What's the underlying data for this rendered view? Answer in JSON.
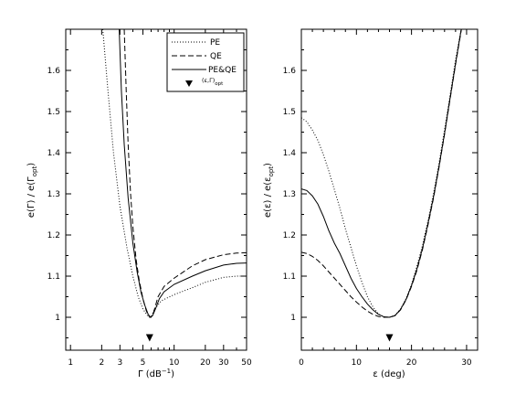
{
  "chart_data": [
    {
      "type": "line",
      "xscale": "log",
      "xlabel": "Γ (dB",
      "xlabel_sup": "−1",
      "xlabel_tail": ")",
      "ylabel": "e(Γ) / e(Γ",
      "ylabel_sub": "opt",
      "ylabel_tail": ")",
      "xlim": [
        0.9,
        50
      ],
      "ylim": [
        0.92,
        1.7
      ],
      "xticks": [
        1,
        2,
        3,
        5,
        10,
        20,
        30,
        50
      ],
      "xtick_labels": [
        "1",
        "2",
        "3",
        "5",
        "10",
        "20",
        "30",
        "50"
      ],
      "yticks": [
        1.0,
        1.1,
        1.2,
        1.3,
        1.4,
        1.5,
        1.6
      ],
      "ytick_labels": [
        "1",
        "1.1",
        "1.2",
        "1.3",
        "1.4",
        "1.5",
        "1.6"
      ],
      "legend": {
        "position": "top-right",
        "entries": [
          {
            "label": "PE",
            "dash": "dotted"
          },
          {
            "label": "QE",
            "dash": "dashed"
          },
          {
            "label": "PE&QE",
            "dash": "solid"
          },
          {
            "label": "(ε,Γ)",
            "sub": "opt",
            "marker": "triangle-down"
          }
        ]
      },
      "series": [
        {
          "name": "PE",
          "dash": "dotted",
          "x": [
            2.05,
            2.3,
            2.6,
            3.0,
            3.5,
            4.0,
            4.5,
            5.0,
            5.5,
            5.8,
            6.0,
            6.5,
            7.5,
            10,
            15,
            20,
            30,
            40,
            50
          ],
          "y": [
            1.7,
            1.55,
            1.4,
            1.27,
            1.17,
            1.1,
            1.05,
            1.02,
            1.005,
            1.0,
            1.002,
            1.02,
            1.04,
            1.055,
            1.072,
            1.085,
            1.097,
            1.1,
            1.1
          ]
        },
        {
          "name": "QE",
          "dash": "dashed",
          "x": [
            3.3,
            3.45,
            3.6,
            3.8,
            4.0,
            4.3,
            4.6,
            5.0,
            5.4,
            5.7,
            6.0,
            6.3,
            7.0,
            8.0,
            10,
            15,
            20,
            30,
            40,
            50
          ],
          "y": [
            1.7,
            1.55,
            1.42,
            1.3,
            1.22,
            1.14,
            1.09,
            1.045,
            1.015,
            1.003,
            1.0,
            1.01,
            1.05,
            1.075,
            1.095,
            1.125,
            1.14,
            1.152,
            1.156,
            1.157
          ]
        },
        {
          "name": "PE&QE",
          "dash": "solid",
          "x": [
            2.95,
            3.1,
            3.3,
            3.6,
            4.0,
            4.4,
            4.8,
            5.2,
            5.6,
            5.9,
            6.2,
            6.6,
            7.2,
            8.0,
            10,
            15,
            20,
            30,
            40,
            50
          ],
          "y": [
            1.7,
            1.55,
            1.42,
            1.29,
            1.18,
            1.11,
            1.06,
            1.03,
            1.008,
            1.0,
            1.004,
            1.02,
            1.045,
            1.062,
            1.08,
            1.1,
            1.113,
            1.127,
            1.131,
            1.132
          ]
        }
      ],
      "markers": [
        {
          "x": 5.8,
          "y": 0.95,
          "shape": "triangle-down"
        }
      ]
    },
    {
      "type": "line",
      "xscale": "linear",
      "xlabel": "ε (deg)",
      "ylabel": "e(ε) / e(ε",
      "ylabel_sub": "opt",
      "ylabel_tail": ")",
      "xlim": [
        0,
        32
      ],
      "ylim": [
        0.92,
        1.7
      ],
      "xticks": [
        0,
        10,
        20,
        30
      ],
      "xtick_labels": [
        "0",
        "10",
        "20",
        "30"
      ],
      "yticks": [
        1.0,
        1.1,
        1.2,
        1.3,
        1.4,
        1.5,
        1.6
      ],
      "ytick_labels": [
        "1",
        "1.1",
        "1.2",
        "1.3",
        "1.4",
        "1.5",
        "1.6"
      ],
      "series": [
        {
          "name": "PE",
          "dash": "dotted",
          "x": [
            0,
            1,
            2,
            3,
            4,
            5,
            6,
            7,
            8,
            9,
            10,
            11,
            12,
            13,
            14,
            15,
            16,
            17,
            18,
            19,
            20,
            21,
            22,
            23,
            24,
            25,
            26,
            27,
            28,
            29,
            30
          ],
          "y": [
            1.485,
            1.475,
            1.455,
            1.43,
            1.395,
            1.355,
            1.31,
            1.265,
            1.215,
            1.17,
            1.125,
            1.085,
            1.05,
            1.025,
            1.008,
            1.001,
            1.0,
            1.005,
            1.02,
            1.045,
            1.08,
            1.125,
            1.175,
            1.235,
            1.3,
            1.375,
            1.455,
            1.54,
            1.625,
            1.7,
            1.79
          ]
        },
        {
          "name": "QE",
          "dash": "dashed",
          "x": [
            0,
            1,
            2,
            3,
            4,
            5,
            6,
            7,
            8,
            9,
            10,
            11,
            12,
            13,
            14,
            15,
            16,
            17,
            18,
            19,
            20,
            21,
            22,
            23,
            24,
            25,
            26,
            27,
            28,
            29,
            30
          ],
          "y": [
            1.158,
            1.155,
            1.148,
            1.138,
            1.125,
            1.11,
            1.095,
            1.08,
            1.065,
            1.05,
            1.037,
            1.025,
            1.015,
            1.007,
            1.002,
            1.0,
            1.0,
            1.004,
            1.018,
            1.042,
            1.075,
            1.115,
            1.165,
            1.225,
            1.29,
            1.365,
            1.445,
            1.53,
            1.615,
            1.695,
            1.785
          ]
        },
        {
          "name": "PE&QE",
          "dash": "solid",
          "x": [
            0,
            1,
            2,
            3,
            4,
            5,
            6,
            7,
            8,
            9,
            10,
            11,
            12,
            13,
            14,
            15,
            16,
            17,
            18,
            19,
            20,
            21,
            22,
            23,
            24,
            25,
            26,
            27,
            28,
            29,
            30
          ],
          "y": [
            1.312,
            1.308,
            1.295,
            1.275,
            1.245,
            1.21,
            1.18,
            1.155,
            1.125,
            1.095,
            1.07,
            1.05,
            1.032,
            1.018,
            1.007,
            1.001,
            1.0,
            1.004,
            1.019,
            1.043,
            1.077,
            1.118,
            1.168,
            1.228,
            1.293,
            1.367,
            1.447,
            1.532,
            1.617,
            1.697,
            1.787
          ]
        }
      ],
      "markers": [
        {
          "x": 16,
          "y": 0.95,
          "shape": "triangle-down"
        }
      ]
    }
  ]
}
